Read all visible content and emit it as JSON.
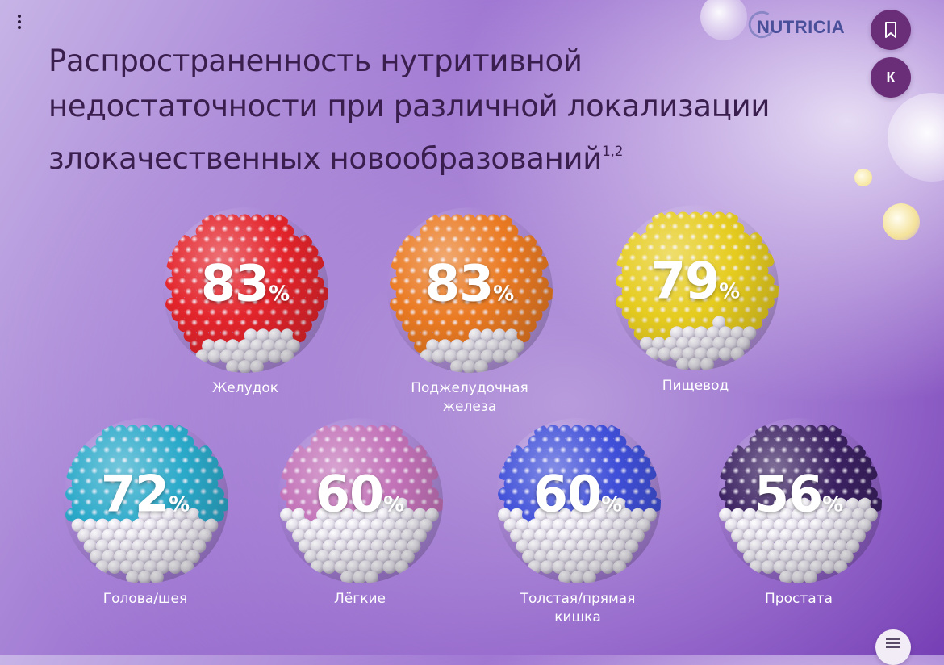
{
  "brand": {
    "logo_text": "NUTRICIA"
  },
  "title": {
    "lines": [
      "Распространенность нутритивной",
      "недостаточности при различной локализации",
      "злокачественных новообразований"
    ],
    "superscript": "1,2"
  },
  "buttons": {
    "bookmark_icon": "bookmark-icon",
    "k_label": "К",
    "menu_icon": "hamburger-icon",
    "more_icon": "vertical-dots-icon"
  },
  "items": [
    {
      "value": "83",
      "unit": "%",
      "label_lines": [
        "Желудок"
      ],
      "color": "#e3242b",
      "white_fraction": 0.2
    },
    {
      "value": "83",
      "unit": "%",
      "label_lines": [
        "Поджелудочная",
        "железа"
      ],
      "color": "#ea7a22",
      "white_fraction": 0.2
    },
    {
      "value": "79",
      "unit": "%",
      "label_lines": [
        "Пищевод"
      ],
      "color": "#e6cc1f",
      "white_fraction": 0.25
    },
    {
      "value": "72",
      "unit": "%",
      "label_lines": [
        "Голова/шея"
      ],
      "color": "#2aa9c9",
      "white_fraction": 0.4
    },
    {
      "value": "60",
      "unit": "%",
      "label_lines": [
        "Лёгкие"
      ],
      "color": "#c271b7",
      "white_fraction": 0.45
    },
    {
      "value": "60",
      "unit": "%",
      "label_lines": [
        "Толстая/прямая",
        "кишка"
      ],
      "color": "#3f4fd8",
      "white_fraction": 0.45
    },
    {
      "value": "56",
      "unit": "%",
      "label_lines": [
        "Простата"
      ],
      "color": "#3a2060",
      "white_fraction": 0.5
    }
  ]
}
